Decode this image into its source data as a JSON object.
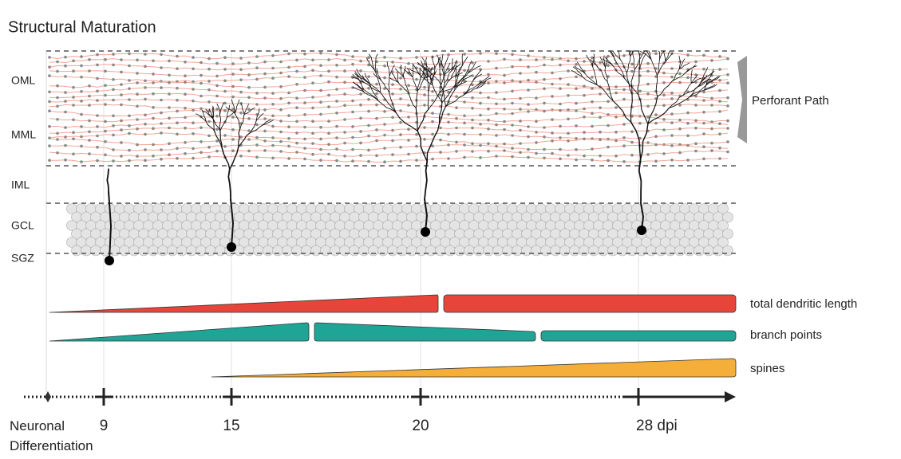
{
  "title": "Structural Maturation",
  "layers": [
    "OML",
    "MML",
    "IML",
    "GCL",
    "SGZ"
  ],
  "perforant_path": "Perforant Path",
  "measures": [
    "total dendritic length",
    "branch points",
    "spines"
  ],
  "timeline": {
    "start": "Neuronal Differentiation",
    "ticks": [
      "9",
      "15",
      "20",
      "28 dpi"
    ]
  }
}
